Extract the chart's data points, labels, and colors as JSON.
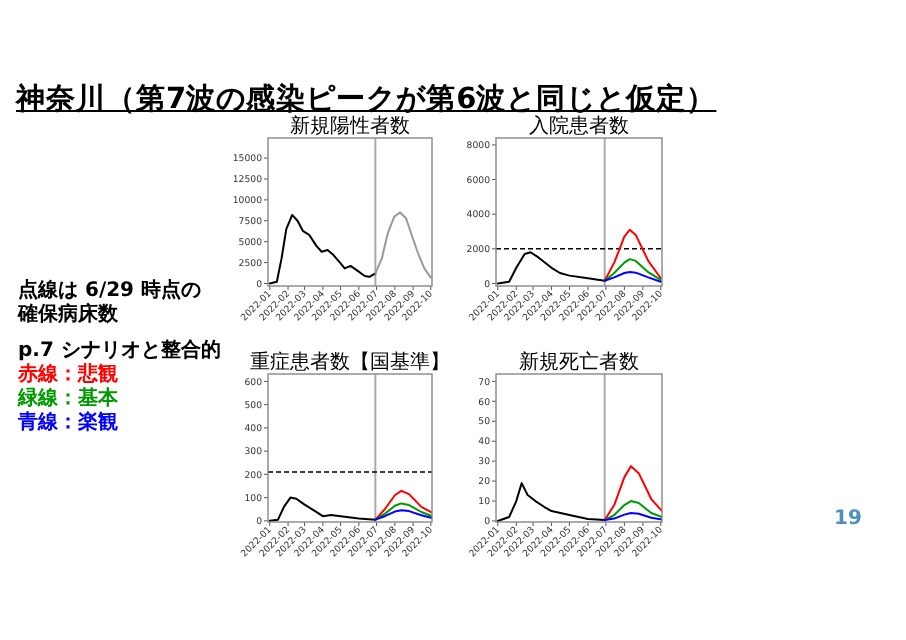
{
  "chart_data": [
    {
      "type": "other",
      "title": "神奈川（第7波の感染ピークが第6波と同じと仮定）",
      "annotations": [
        "点線は 6/29 時点の確保病床数",
        "p.7 シナリオと整合的",
        "赤線：悲観",
        "緑線：基本",
        "青線：楽観",
        "19"
      ]
    },
    {
      "type": "line",
      "title": "新規陽性者数",
      "xlim": [
        "2021-12-29",
        "2022-10-03"
      ],
      "xticks": [
        "2022-01",
        "2022-02",
        "2022-03",
        "2022-04",
        "2022-05",
        "2022-06",
        "2022-07",
        "2022-08",
        "2022-09",
        "2022-10"
      ],
      "ylim": [
        -300,
        17400
      ],
      "yticks": [
        0,
        2500,
        5000,
        7500,
        10000,
        12500,
        15000
      ],
      "ref_lines": [
        {
          "axis": "x",
          "value": "2022-06-29",
          "color": "#aaaaaa"
        }
      ],
      "series": [
        {
          "color": "#000000",
          "x": [
            "2022-01-01",
            "2022-01-13",
            "2022-01-21",
            "2022-01-29",
            "2022-02-08",
            "2022-02-17",
            "2022-02-26",
            "2022-03-09",
            "2022-03-21",
            "2022-03-30",
            "2022-04-09",
            "2022-04-19",
            "2022-04-30",
            "2022-05-08",
            "2022-05-18",
            "2022-05-30",
            "2022-06-11",
            "2022-06-19",
            "2022-06-26",
            "2022-06-29"
          ],
          "values": [
            0,
            200,
            3000,
            6500,
            8200,
            7500,
            6300,
            5800,
            4500,
            3800,
            4000,
            3400,
            2500,
            1800,
            2100,
            1500,
            900,
            800,
            1100,
            1200
          ]
        },
        {
          "color": "#999999",
          "x": [
            "2022-06-29",
            "2022-07-10",
            "2022-07-20",
            "2022-07-31",
            "2022-08-10",
            "2022-08-20",
            "2022-08-31",
            "2022-09-10",
            "2022-09-20",
            "2022-10-01"
          ],
          "values": [
            1200,
            3000,
            6000,
            8000,
            8500,
            7800,
            5500,
            3500,
            1800,
            700
          ]
        }
      ]
    },
    {
      "type": "line",
      "title": "入院患者数",
      "xlim": [
        "2021-12-29",
        "2022-10-03"
      ],
      "xticks": [
        "2022-01",
        "2022-02",
        "2022-03",
        "2022-04",
        "2022-05",
        "2022-06",
        "2022-07",
        "2022-08",
        "2022-09",
        "2022-10"
      ],
      "ylim": [
        -150,
        8400
      ],
      "yticks": [
        0,
        2000,
        4000,
        6000,
        8000
      ],
      "ref_lines": [
        {
          "axis": "x",
          "value": "2022-06-29",
          "color": "#aaaaaa"
        },
        {
          "axis": "y",
          "value": 2000,
          "color": "#000000",
          "line_style": "dashed"
        }
      ],
      "series": [
        {
          "color": "#000000",
          "x": [
            "2022-01-01",
            "2022-01-20",
            "2022-02-01",
            "2022-02-15",
            "2022-02-25",
            "2022-03-10",
            "2022-04-01",
            "2022-04-15",
            "2022-05-01",
            "2022-06-01",
            "2022-06-29"
          ],
          "values": [
            0,
            100,
            900,
            1700,
            1800,
            1500,
            900,
            600,
            450,
            300,
            150
          ]
        },
        {
          "color": "#ff0000",
          "x": [
            "2022-06-29",
            "2022-07-15",
            "2022-08-01",
            "2022-08-10",
            "2022-08-20",
            "2022-09-10",
            "2022-10-01"
          ],
          "values": [
            150,
            1200,
            2700,
            3100,
            2800,
            1300,
            300
          ]
        },
        {
          "color": "#009900",
          "x": [
            "2022-06-29",
            "2022-07-15",
            "2022-08-01",
            "2022-08-10",
            "2022-08-20",
            "2022-09-10",
            "2022-10-01"
          ],
          "values": [
            150,
            600,
            1200,
            1400,
            1300,
            650,
            200
          ]
        },
        {
          "color": "#0000ff",
          "x": [
            "2022-06-29",
            "2022-07-15",
            "2022-08-01",
            "2022-08-10",
            "2022-08-20",
            "2022-09-10",
            "2022-10-01"
          ],
          "values": [
            150,
            350,
            600,
            660,
            620,
            350,
            100
          ]
        }
      ]
    },
    {
      "type": "line",
      "title": "重症患者数【国基準】",
      "xlim": [
        "2021-12-29",
        "2022-10-03"
      ],
      "xticks": [
        "2022-01",
        "2022-02",
        "2022-03",
        "2022-04",
        "2022-05",
        "2022-06",
        "2022-07",
        "2022-08",
        "2022-09",
        "2022-10"
      ],
      "ylim": [
        -5,
        632
      ],
      "yticks": [
        0,
        100,
        200,
        300,
        400,
        500,
        600
      ],
      "ref_lines": [
        {
          "axis": "x",
          "value": "2022-06-29",
          "color": "#aaaaaa"
        },
        {
          "axis": "y",
          "value": 210,
          "color": "#000000",
          "line_style": "dashed"
        }
      ],
      "series": [
        {
          "color": "#000000",
          "x": [
            "2022-01-01",
            "2022-01-15",
            "2022-01-25",
            "2022-02-05",
            "2022-02-15",
            "2022-03-01",
            "2022-03-20",
            "2022-04-01",
            "2022-04-15",
            "2022-05-01",
            "2022-06-01",
            "2022-06-29"
          ],
          "values": [
            0,
            5,
            60,
            100,
            95,
            70,
            40,
            20,
            25,
            20,
            10,
            5
          ]
        },
        {
          "color": "#ff0000",
          "x": [
            "2022-06-29",
            "2022-07-15",
            "2022-08-01",
            "2022-08-12",
            "2022-08-25",
            "2022-09-15",
            "2022-10-03"
          ],
          "values": [
            5,
            50,
            110,
            129,
            115,
            60,
            35
          ]
        },
        {
          "color": "#009900",
          "x": [
            "2022-06-29",
            "2022-07-15",
            "2022-08-01",
            "2022-08-12",
            "2022-08-25",
            "2022-09-15",
            "2022-10-03"
          ],
          "values": [
            5,
            30,
            65,
            75,
            68,
            38,
            20
          ]
        },
        {
          "color": "#0000ff",
          "x": [
            "2022-06-29",
            "2022-07-15",
            "2022-08-01",
            "2022-08-12",
            "2022-08-25",
            "2022-09-15",
            "2022-10-03"
          ],
          "values": [
            5,
            20,
            40,
            46,
            42,
            24,
            12
          ]
        }
      ]
    },
    {
      "type": "line",
      "title": "新規死亡者数",
      "xlim": [
        "2021-12-29",
        "2022-10-03"
      ],
      "xticks": [
        "2022-01",
        "2022-02",
        "2022-03",
        "2022-04",
        "2022-05",
        "2022-06",
        "2022-07",
        "2022-08",
        "2022-09",
        "2022-10"
      ],
      "ylim": [
        -0.5,
        73.7
      ],
      "yticks": [
        0,
        10,
        20,
        30,
        40,
        50,
        60,
        70
      ],
      "ref_lines": [
        {
          "axis": "x",
          "value": "2022-06-29",
          "color": "#aaaaaa"
        }
      ],
      "series": [
        {
          "color": "#000000",
          "x": [
            "2022-01-01",
            "2022-01-20",
            "2022-02-01",
            "2022-02-10",
            "2022-02-20",
            "2022-03-05",
            "2022-03-20",
            "2022-04-01",
            "2022-05-01",
            "2022-06-01",
            "2022-06-29"
          ],
          "values": [
            0,
            2,
            10,
            19,
            13,
            10,
            7,
            5,
            3,
            1,
            0.5
          ]
        },
        {
          "color": "#ff0000",
          "x": [
            "2022-06-29",
            "2022-07-15",
            "2022-08-01",
            "2022-08-12",
            "2022-08-25",
            "2022-09-15",
            "2022-10-03"
          ],
          "values": [
            0.5,
            8,
            22,
            27.5,
            24,
            11,
            5
          ]
        },
        {
          "color": "#009900",
          "x": [
            "2022-06-29",
            "2022-07-15",
            "2022-08-01",
            "2022-08-12",
            "2022-08-25",
            "2022-09-15",
            "2022-10-03"
          ],
          "values": [
            0.5,
            3,
            8,
            10,
            9,
            4,
            2
          ]
        },
        {
          "color": "#0000ff",
          "x": [
            "2022-06-29",
            "2022-07-15",
            "2022-08-01",
            "2022-08-12",
            "2022-08-25",
            "2022-09-15",
            "2022-10-03"
          ],
          "values": [
            0.5,
            1.2,
            3.2,
            4,
            3.6,
            1.6,
            0.8
          ]
        }
      ]
    }
  ]
}
